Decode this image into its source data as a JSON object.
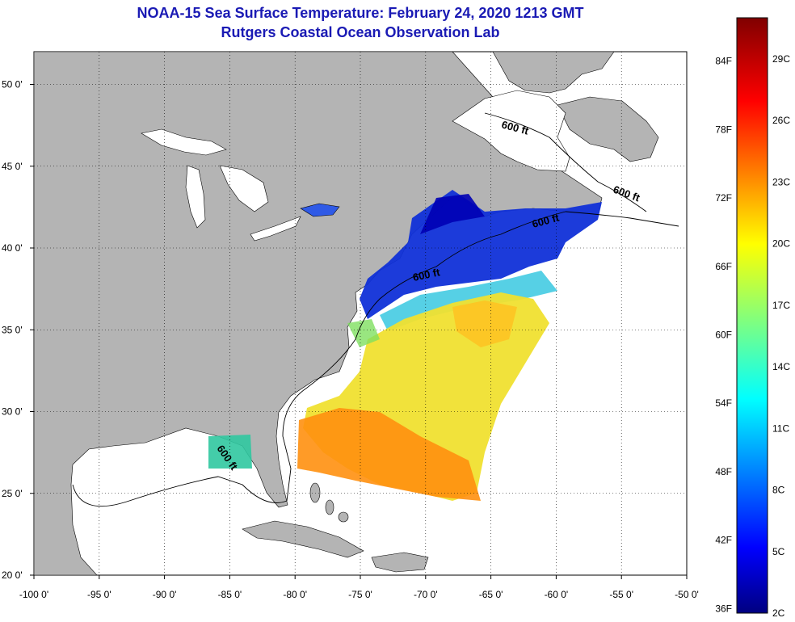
{
  "title": {
    "line1": "NOAA-15 Sea Surface Temperature:  February 24, 2020 1213 GMT",
    "line2": "Rutgers Coastal Ocean Observation Lab"
  },
  "map": {
    "lon_range": [
      -100,
      -50
    ],
    "lat_range": [
      20,
      52
    ],
    "lon_ticks": [
      "-100 0'",
      "-95 0'",
      "-90 0'",
      "-85 0'",
      "-80 0'",
      "-75 0'",
      "-70 0'",
      "-65 0'",
      "-60 0'",
      "-55 0'",
      "-50 0'"
    ],
    "lat_ticks": [
      "20 0'",
      "25 0'",
      "30 0'",
      "35 0'",
      "40 0'",
      "45 0'",
      "50 0'"
    ],
    "grid": true,
    "land_color": "#b4b4b4",
    "ocean_color": "#ffffff",
    "isobath_labels": [
      "600 ft",
      "600 ft",
      "600 ft",
      "600 ft",
      "600 ft"
    ]
  },
  "colorbar": {
    "fahrenheit_labels": [
      "84F",
      "78F",
      "72F",
      "66F",
      "60F",
      "54F",
      "48F",
      "42F",
      "36F"
    ],
    "celsius_labels": [
      "29C",
      "26C",
      "23C",
      "20C",
      "17C",
      "14C",
      "11C",
      "8C",
      "5C",
      "2C"
    ],
    "range_celsius": [
      2,
      31
    ]
  }
}
